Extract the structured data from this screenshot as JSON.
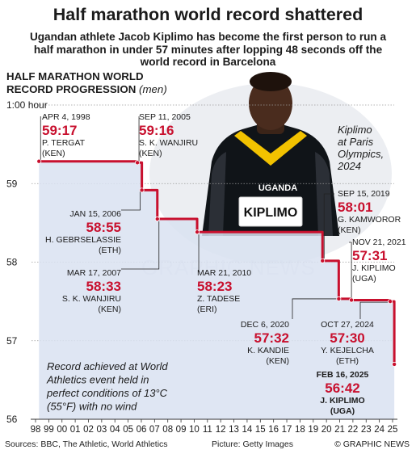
{
  "headline": "Half marathon world record shattered",
  "standfirst": "Ugandan athlete Jacob Kiplimo has become the first person to run a half marathon in under 57 minutes after lopping 48 seconds off the world record in Barcelona",
  "section_title_line1": "HALF MARATHON WORLD",
  "section_title_line2": "RECORD PROGRESSION",
  "section_title_unit": "(men)",
  "photo_caption": "Kiplimo at Paris Olympics, 2024",
  "photo_bib_name": "KIPLIMO",
  "photo_vest_text": "UGANDA",
  "watermark": "GRAPHIC NEWS",
  "footer": {
    "sources": "Sources: BBC, The Athletic, World Athletics",
    "picture": "Picture: Getty Images",
    "credit": "© GRAPHIC NEWS"
  },
  "colors": {
    "line": "#c8102e",
    "area": "#d9e2f1",
    "time": "#c8102e",
    "text": "#1b1b1b",
    "grid": "#9a9a9a"
  },
  "chart_data": {
    "type": "line",
    "step": true,
    "ylabel_top": "1:00 hour",
    "y_ticks": [
      "56",
      "57",
      "58",
      "59"
    ],
    "ylim": [
      56,
      60
    ],
    "x_ticks": [
      "98",
      "99",
      "00",
      "01",
      "02",
      "03",
      "04",
      "05",
      "06",
      "07",
      "08",
      "09",
      "10",
      "11",
      "12",
      "13",
      "14",
      "15",
      "16",
      "17",
      "18",
      "19",
      "20",
      "21",
      "22",
      "23",
      "24",
      "25"
    ],
    "xlim": [
      1998,
      2025
    ],
    "series": [
      {
        "values": [
          {
            "x": 1998.26,
            "y": 59.283
          },
          {
            "x": 2005.7,
            "y": 59.267
          },
          {
            "x": 2006.04,
            "y": 58.917
          },
          {
            "x": 2007.21,
            "y": 58.55
          },
          {
            "x": 2010.22,
            "y": 58.383
          },
          {
            "x": 2019.7,
            "y": 58.017
          },
          {
            "x": 2020.93,
            "y": 57.533
          },
          {
            "x": 2021.89,
            "y": 57.517
          },
          {
            "x": 2024.82,
            "y": 57.5
          },
          {
            "x": 2025.13,
            "y": 56.7
          }
        ]
      }
    ],
    "annotation_note": "Record achieved at World Athletics event held in perfect conditions of 13°C (55°F) with no wind",
    "records": [
      {
        "date": "APR 4, 1998",
        "time": "59:17",
        "name": "P. TERGAT",
        "country": "(KEN)"
      },
      {
        "date": "SEP 11, 2005",
        "time": "59:16",
        "name": "S. K. WANJIRU",
        "country": "(KEN)"
      },
      {
        "date": "JAN 15, 2006",
        "time": "58:55",
        "name": "H. GEBRSELASSIE",
        "country": "(ETH)"
      },
      {
        "date": "MAR 17, 2007",
        "time": "58:33",
        "name": "S. K. WANJIRU",
        "country": "(KEN)"
      },
      {
        "date": "MAR 21, 2010",
        "time": "58:23",
        "name": "Z. TADESE",
        "country": "(ERI)"
      },
      {
        "date": "SEP 15, 2019",
        "time": "58:01",
        "name": "G. KAMWOROR",
        "country": "(KEN)"
      },
      {
        "date": "DEC 6, 2020",
        "time": "57:32",
        "name": "K. KANDIE",
        "country": "(KEN)"
      },
      {
        "date": "NOV 21, 2021",
        "time": "57:31",
        "name": "J. KIPLIMO",
        "country": "(UGA)"
      },
      {
        "date": "OCT 27, 2024",
        "time": "57:30",
        "name": "Y. KEJELCHA",
        "country": "(ETH)"
      },
      {
        "date": "FEB 16, 2025",
        "time": "56:42",
        "name": "J. KIPLIMO",
        "country": "(UGA)"
      }
    ]
  }
}
